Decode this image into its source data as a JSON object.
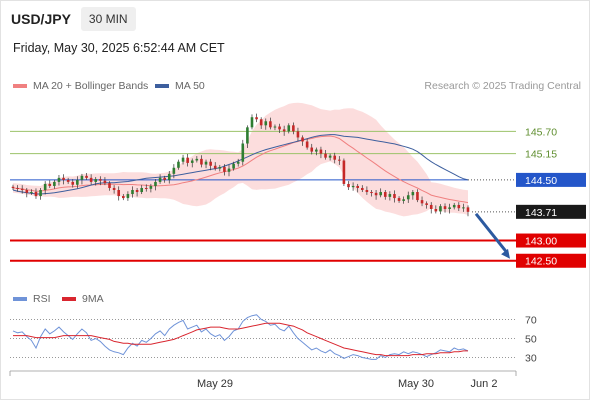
{
  "header": {
    "symbol": "USD/JPY",
    "timeframe": "30 MIN"
  },
  "datetime": "Friday, May 30, 2025 6:52:44 AM CET",
  "legend": {
    "ma20_bb": "MA 20 + Bollinger Bands",
    "ma50": "MA 50",
    "copyright": "Research © 2025 Trading Central"
  },
  "colors": {
    "bullish": "#2e7d32",
    "bearish": "#c62828",
    "bands": "#fbd5d5",
    "ma20": "#f08080",
    "ma50": "#3d5f9e",
    "resistance": "#9bc26a",
    "pivot": "#2456c9",
    "support": "#e00000",
    "rsi": "#6f93d8",
    "rsi_ma": "#d9262f",
    "arrow": "#2c5aa0"
  },
  "chart_data": [
    {
      "type": "candlestick",
      "ylim": [
        141.9,
        146.6
      ],
      "key_levels": [
        {
          "value": 145.7,
          "label": "145.70",
          "kind": "resistance"
        },
        {
          "value": 145.15,
          "label": "145.15",
          "kind": "resistance"
        },
        {
          "value": 144.5,
          "label": "144.50",
          "kind": "pivot"
        },
        {
          "value": 143.71,
          "label": "143.71",
          "kind": "last"
        },
        {
          "value": 143.0,
          "label": "143.00",
          "kind": "support"
        },
        {
          "value": 142.5,
          "label": "142.50",
          "kind": "support"
        }
      ],
      "close": [
        144.3,
        144.28,
        144.25,
        144.18,
        144.2,
        144.1,
        144.25,
        144.4,
        144.35,
        144.45,
        144.55,
        144.5,
        144.45,
        144.38,
        144.5,
        144.6,
        144.55,
        144.45,
        144.52,
        144.48,
        144.42,
        144.3,
        144.25,
        144.1,
        144.05,
        144.15,
        144.25,
        144.2,
        144.3,
        144.28,
        144.35,
        144.45,
        144.55,
        144.5,
        144.65,
        144.8,
        144.95,
        145.05,
        144.92,
        144.98,
        145.02,
        144.88,
        144.95,
        144.85,
        144.78,
        144.82,
        144.7,
        144.78,
        144.9,
        144.95,
        145.4,
        145.8,
        146.05,
        146.0,
        145.85,
        145.95,
        145.8,
        145.82,
        145.75,
        145.7,
        145.85,
        145.7,
        145.55,
        145.45,
        145.3,
        145.2,
        145.25,
        145.15,
        145.05,
        145.1,
        145.0,
        144.98,
        144.4,
        144.32,
        144.35,
        144.3,
        144.25,
        144.2,
        144.18,
        144.12,
        144.2,
        144.08,
        144.15,
        144.05,
        143.98,
        144.02,
        144.12,
        144.2,
        144.0,
        143.92,
        143.88,
        143.78,
        143.72,
        143.85,
        143.78,
        143.82,
        143.88,
        143.8,
        143.82,
        143.71
      ],
      "ma50": [
        144.25,
        144.22,
        144.2,
        144.18,
        144.17,
        144.15,
        144.15,
        144.16,
        144.17,
        144.18,
        144.2,
        144.22,
        144.24,
        144.26,
        144.28,
        144.31,
        144.34,
        144.37,
        144.4,
        144.42,
        144.43,
        144.43,
        144.43,
        144.44,
        144.45,
        144.46,
        144.48,
        144.5,
        144.52,
        144.54,
        144.55,
        144.56,
        144.57,
        144.58,
        144.59,
        144.6,
        144.62,
        144.64,
        144.66,
        144.68,
        144.7,
        144.72,
        144.74,
        144.76,
        144.78,
        144.8,
        144.84,
        144.88,
        144.92,
        144.97,
        145.02,
        145.07,
        145.12,
        145.17,
        145.21,
        145.25,
        145.28,
        145.31,
        145.34,
        145.37,
        145.4,
        145.43,
        145.46,
        145.49,
        145.52,
        145.55,
        145.58,
        145.6,
        145.61,
        145.62,
        145.62,
        145.6,
        145.58,
        145.57,
        145.56,
        145.55,
        145.53,
        145.51,
        145.49,
        145.47,
        145.45,
        145.43,
        145.41,
        145.39,
        145.36,
        145.33,
        145.3,
        145.26,
        145.2,
        145.12,
        145.03,
        144.95,
        144.88,
        144.82,
        144.76,
        144.7,
        144.64,
        144.58,
        144.53,
        144.5
      ],
      "rsi": [
        58,
        56,
        57,
        52,
        48,
        40,
        52,
        60,
        55,
        58,
        62,
        57,
        53,
        49,
        55,
        60,
        56,
        48,
        50,
        47,
        42,
        38,
        36,
        35,
        33,
        40,
        45,
        42,
        48,
        46,
        50,
        55,
        58,
        53,
        60,
        64,
        67,
        69,
        60,
        62,
        64,
        57,
        60,
        55,
        52,
        54,
        48,
        52,
        58,
        60,
        68,
        72,
        74,
        75,
        70,
        68,
        64,
        65,
        60,
        58,
        63,
        56,
        50,
        46,
        42,
        38,
        40,
        37,
        35,
        38,
        34,
        32,
        29,
        31,
        33,
        32,
        30,
        29,
        28,
        28,
        32,
        30,
        33,
        34,
        33,
        36,
        34,
        36,
        35,
        33,
        31,
        33,
        35,
        38,
        37,
        36,
        40,
        38,
        39,
        37
      ],
      "rsi_ma": [
        53,
        53,
        53,
        53,
        52,
        51,
        51,
        51,
        51,
        51,
        52,
        53,
        53,
        53,
        53,
        53,
        53,
        53,
        52,
        51,
        50,
        49,
        47,
        46,
        45,
        45,
        44,
        44,
        44,
        44,
        44,
        45,
        46,
        47,
        48,
        49,
        51,
        53,
        55,
        57,
        59,
        60,
        61,
        62,
        62,
        62,
        61,
        60,
        60,
        60,
        61,
        62,
        63,
        64,
        65,
        66,
        66,
        66,
        66,
        65,
        64,
        63,
        61,
        59,
        56,
        54,
        52,
        50,
        48,
        46,
        44,
        42,
        40,
        39,
        38,
        37,
        36,
        35,
        34,
        33,
        33,
        32,
        32,
        32,
        32,
        32,
        32,
        33,
        33,
        33,
        34,
        34,
        34,
        35,
        35,
        35,
        36,
        36,
        37,
        37
      ],
      "arrow_target": 142.5
    },
    {
      "type": "line",
      "title": "RSI",
      "legend": [
        "RSI",
        "9MA"
      ],
      "ylim": [
        20,
        80
      ],
      "ticks": [
        "70",
        "50",
        "30"
      ],
      "x_labels": [
        "May 29",
        "May 30",
        "Jun 2"
      ]
    }
  ]
}
